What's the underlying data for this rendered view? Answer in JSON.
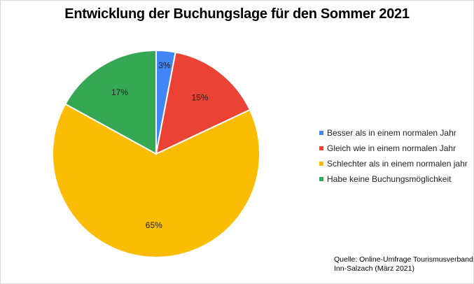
{
  "chart_data": {
    "type": "pie",
    "title": "Entwicklung der Buchungslage für den Sommer 2021",
    "categories": [
      "Besser als in einem normalen Jahr",
      "Gleich wie in einem normalen Jahr",
      "Schlechter als in einem normalen jahr",
      "Habe keine Buchungsmöglichkeit"
    ],
    "values": [
      3,
      15,
      65,
      17
    ],
    "labels": [
      "3%",
      "15%",
      "65%",
      "17%"
    ],
    "colors": [
      "#4285f4",
      "#ea4335",
      "#fbbc04",
      "#34a853"
    ],
    "legend_position": "right"
  },
  "source": {
    "line1": "Quelle: Online-Umfrage Tourismusverband",
    "line2": "Inn-Salzach (März 2021)"
  }
}
